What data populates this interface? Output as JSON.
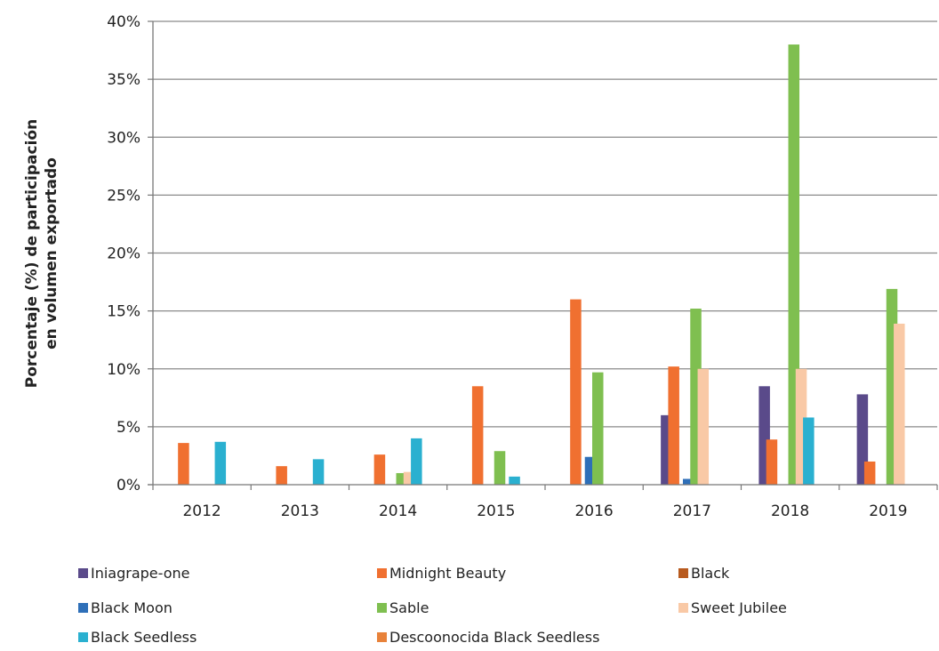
{
  "chart_data": {
    "type": "bar",
    "title": "",
    "xlabel": "",
    "ylabel_lines": [
      "Porcentaje (%) de participación",
      "en volumen exportado"
    ],
    "categories": [
      "2012",
      "2013",
      "2014",
      "2015",
      "2016",
      "2017",
      "2018",
      "2019"
    ],
    "ylim": [
      0,
      40
    ],
    "yticks": [
      0,
      5,
      10,
      15,
      20,
      25,
      30,
      35,
      40
    ],
    "ytick_labels": [
      "0%",
      "5%",
      "10%",
      "15%",
      "20%",
      "25%",
      "30%",
      "35%",
      "40%"
    ],
    "grid": true,
    "legend_position": "bottom",
    "series": [
      {
        "name": "Iniagrape-one",
        "color": "#5a4a8a",
        "values": [
          0,
          0,
          0,
          0,
          0,
          6.0,
          8.5,
          7.8
        ]
      },
      {
        "name": "Midnight Beauty",
        "color": "#f07030",
        "values": [
          3.6,
          1.6,
          2.6,
          8.5,
          16.0,
          10.2,
          3.9,
          2.0
        ]
      },
      {
        "name": "Black",
        "color": "#b85a1e",
        "values": [
          0,
          0,
          0,
          0,
          0,
          0,
          0,
          0
        ]
      },
      {
        "name": "Black Moon",
        "color": "#2e6fb8",
        "values": [
          0,
          0,
          0,
          0,
          2.4,
          0.5,
          0,
          0
        ]
      },
      {
        "name": "Sable",
        "color": "#7fbf50",
        "values": [
          0,
          0,
          1.0,
          2.9,
          9.7,
          15.2,
          38.0,
          16.9
        ]
      },
      {
        "name": "Sweet Jubilee",
        "color": "#f9c9a6",
        "values": [
          0,
          0,
          1.1,
          0,
          0,
          10.0,
          10.0,
          13.9
        ]
      },
      {
        "name": "Black Seedless",
        "color": "#2ab0d0",
        "values": [
          3.7,
          2.2,
          4.0,
          0.7,
          0,
          0,
          5.8,
          0
        ]
      },
      {
        "name": "Descoonocida Black Seedless",
        "color": "#e8823a",
        "values": [
          0,
          0,
          0,
          0,
          0,
          0,
          0,
          0
        ]
      }
    ]
  }
}
